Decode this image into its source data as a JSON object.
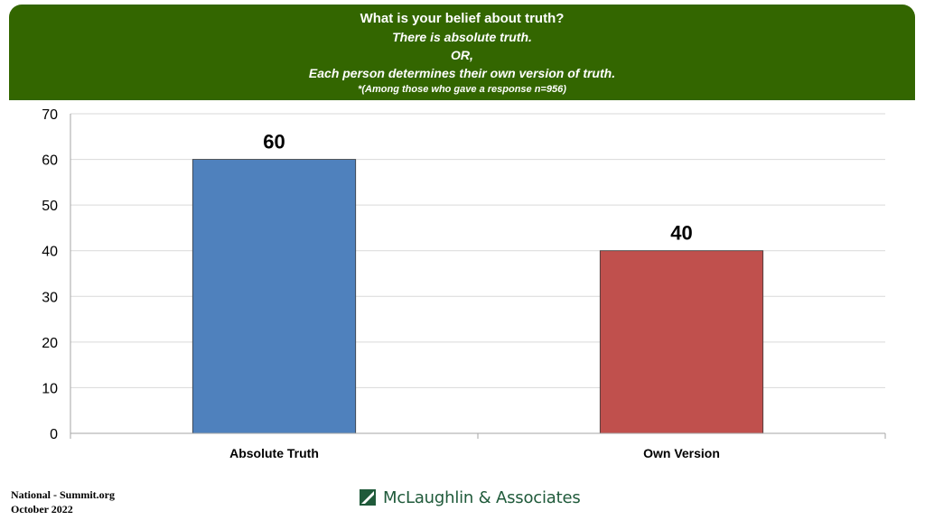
{
  "colors": {
    "header_bg": "#336600",
    "bar_1": "#4f81bd",
    "bar_2": "#c0504d",
    "logo": "#1f5a3a"
  },
  "header": {
    "title": "What is your belief about truth?",
    "option_1": "There is absolute truth.",
    "or": "OR,",
    "option_2": "Each person determines their own version of truth.",
    "note": "*(Among those who gave a response n=956)"
  },
  "chart_data": {
    "type": "bar",
    "categories": [
      "Absolute Truth",
      "Own Version"
    ],
    "values": [
      60,
      40
    ],
    "data_labels": [
      "60",
      "40"
    ],
    "ylim": [
      0,
      70
    ],
    "yticks": [
      0,
      10,
      20,
      30,
      40,
      50,
      60,
      70
    ],
    "grid": true,
    "legend": "none",
    "xlabel": "",
    "ylabel": ""
  },
  "footer": {
    "line_1": "National - Summit.org",
    "line_2": "October 2022",
    "logo_icon": "mclaughlin-logo-icon",
    "logo_text": "McLaughlin & Associates"
  }
}
